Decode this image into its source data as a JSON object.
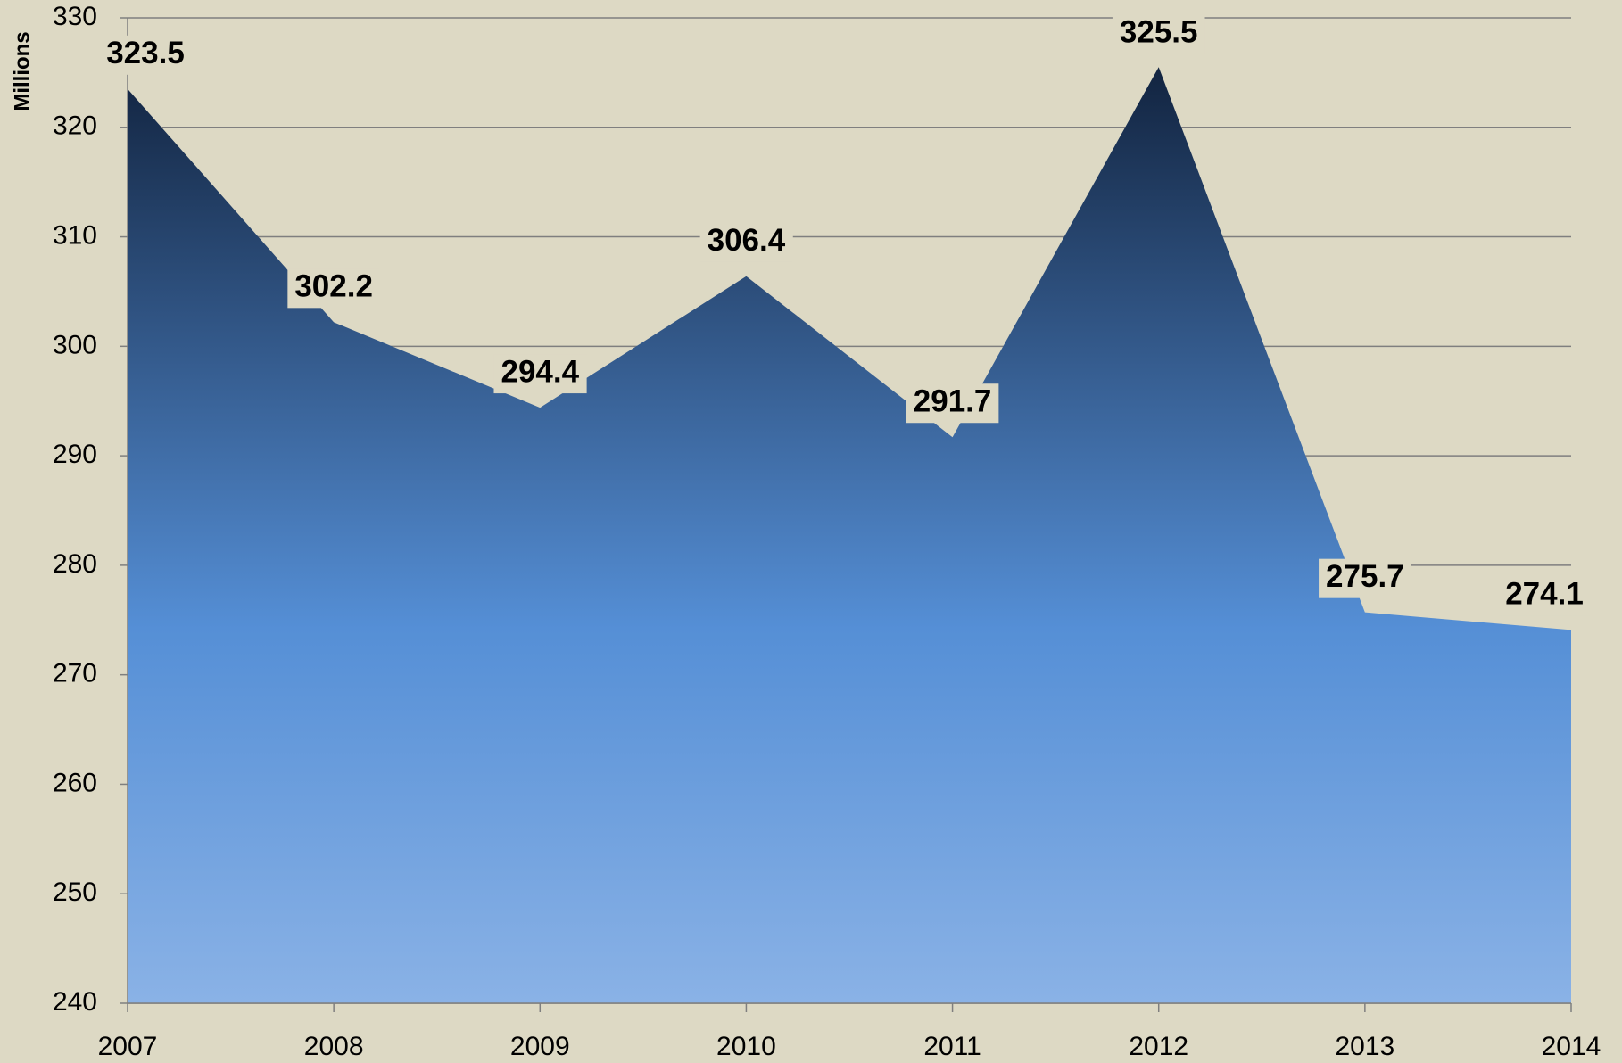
{
  "chart_data": {
    "type": "area",
    "y_label": "Millions",
    "categories": [
      "2007",
      "2008",
      "2009",
      "2010",
      "2011",
      "2012",
      "2013",
      "2014"
    ],
    "values": [
      323.5,
      302.2,
      294.4,
      306.4,
      291.7,
      325.5,
      275.7,
      274.1
    ],
    "ylim": [
      240,
      330
    ],
    "yticks": [
      240,
      250,
      260,
      270,
      280,
      290,
      300,
      310,
      320,
      330
    ],
    "grid": true,
    "colors": [
      "#122440",
      "#558fd6",
      "#8ab2e6"
    ]
  }
}
